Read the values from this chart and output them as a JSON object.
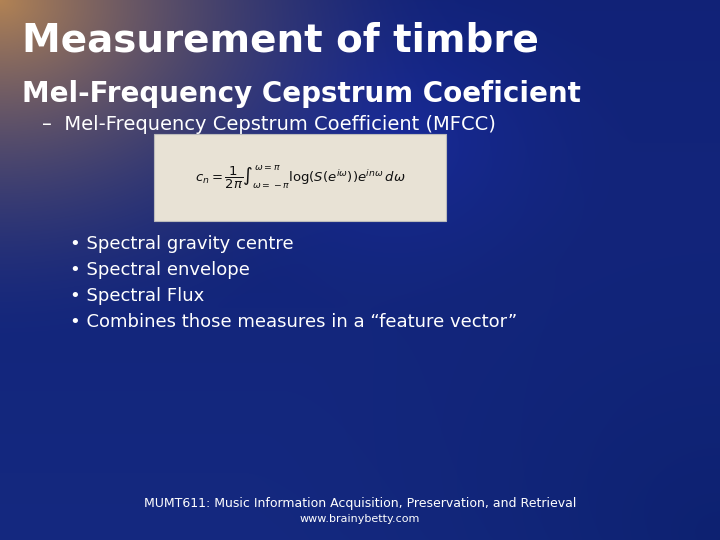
{
  "title": "Measurement of timbre",
  "subtitle": "Mel-Frequency Cepstrum Coeficient",
  "bullet_intro": "–  Mel-Frequency Cepstrum Coefficient (MFCC)",
  "bullets": [
    "• Spectral gravity centre",
    "• Spectral envelope",
    "• Spectral Flux",
    "• Combines those measures in a “feature vector”"
  ],
  "footer_line1": "MUMT611: Music Information Acquisition, Preservation, and Retrieval",
  "footer_line2": "www.brainybetty.com",
  "title_color": "#ffffff",
  "subtitle_color": "#ffffff",
  "bullet_color": "#ffffff",
  "footer_color": "#ffffff",
  "title_fontsize": 28,
  "subtitle_fontsize": 20,
  "bullet_intro_fontsize": 14,
  "bullet_fontsize": 13,
  "footer_fontsize": 9
}
